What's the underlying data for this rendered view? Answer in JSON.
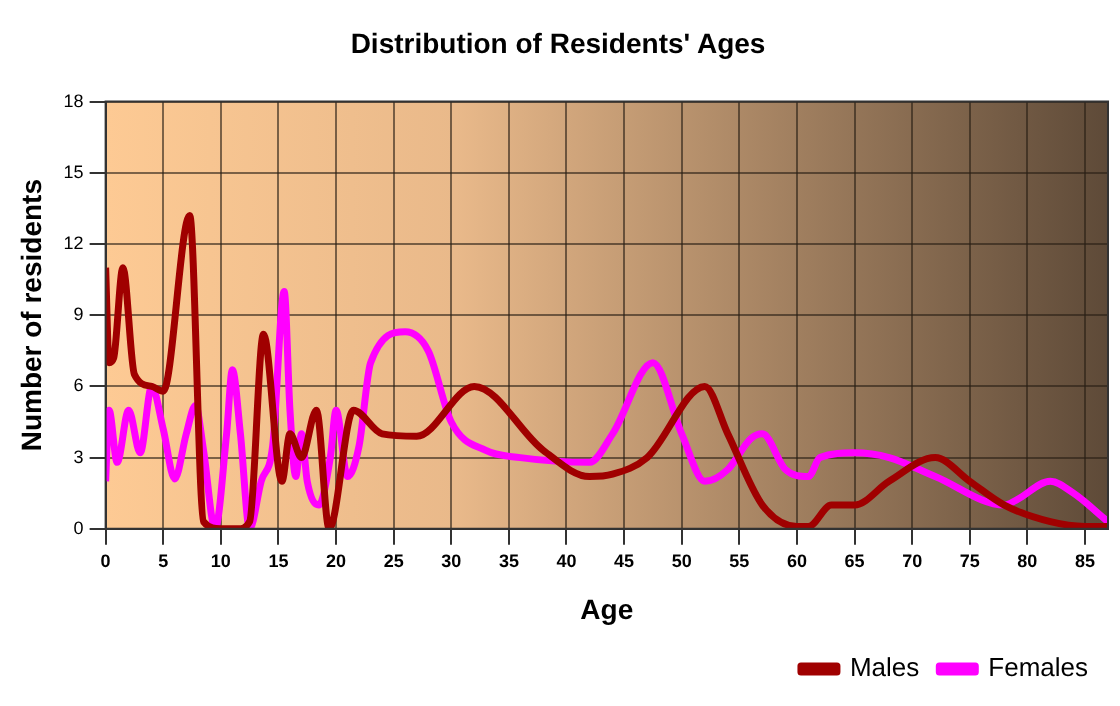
{
  "chart_data": {
    "type": "line",
    "title": "Distribution of Residents' Ages",
    "xlabel": "Age",
    "ylabel": "Number of residents",
    "xlim": [
      0,
      87
    ],
    "xticks": [
      0,
      5,
      10,
      15,
      20,
      25,
      30,
      35,
      40,
      45,
      50,
      55,
      60,
      65,
      70,
      75,
      80,
      85
    ],
    "ylim": [
      0,
      18
    ],
    "yticks": [
      0,
      3,
      6,
      9,
      12,
      15,
      18
    ],
    "grid": true,
    "legend": "bottom right",
    "marker": "none",
    "line_style": "solid",
    "series": [
      {
        "name": "Males",
        "color": "#a00000",
        "x": [
          0,
          0.3,
          0.7,
          1.5,
          2.5,
          4,
          5,
          7.3,
          8.5,
          10,
          11.5,
          12.5,
          13.7,
          15.3,
          16,
          17,
          18.3,
          19.4,
          21.5,
          24,
          27,
          32,
          38,
          42,
          44,
          47,
          52,
          54,
          57,
          60,
          61,
          63,
          65,
          68,
          72,
          75,
          78,
          82,
          85,
          87
        ],
        "values": [
          11,
          7,
          7.2,
          11,
          6.5,
          6,
          5.8,
          13.2,
          0.3,
          0,
          0,
          0.3,
          8.2,
          2,
          4,
          3,
          5,
          0,
          5,
          4,
          3.9,
          6,
          3.3,
          2.2,
          2.3,
          3,
          6,
          4,
          1,
          0.1,
          0.1,
          1,
          1,
          2,
          3,
          2,
          1,
          0.3,
          0.1,
          0.1
        ]
      },
      {
        "name": "Females",
        "color": "#ff00ff",
        "x": [
          0,
          0.3,
          1,
          2,
          3,
          4,
          5,
          6,
          7,
          7.8,
          8.5,
          9.5,
          10.5,
          11,
          11.7,
          12.5,
          13.5,
          14.5,
          15.5,
          16,
          16.5,
          17,
          17.5,
          18.5,
          19.5,
          20,
          21,
          22,
          23,
          26,
          28,
          30,
          33,
          36,
          42,
          44,
          47.5,
          50,
          52,
          54,
          56,
          57,
          59,
          61,
          62,
          65,
          68,
          72,
          78,
          79,
          82,
          84,
          87
        ],
        "values": [
          2,
          5,
          2.8,
          5,
          3.2,
          6,
          4.2,
          2.1,
          4,
          5.2,
          3.3,
          0,
          4,
          6.7,
          4,
          0,
          2,
          3.5,
          10,
          5,
          2.2,
          4,
          2,
          1,
          3,
          5,
          2.2,
          3.5,
          7,
          8.3,
          7.5,
          4.5,
          3.3,
          3,
          2.8,
          4,
          7,
          4,
          2,
          2.5,
          3.8,
          4,
          2.5,
          2.2,
          3,
          3.2,
          3,
          2.2,
          1,
          1.2,
          2,
          1.5,
          0.3
        ]
      }
    ]
  }
}
